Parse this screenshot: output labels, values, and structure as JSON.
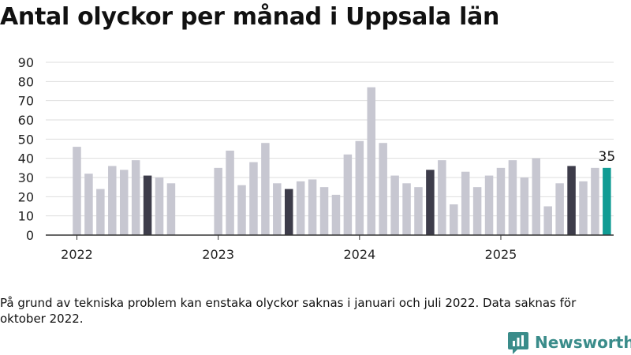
{
  "title": "Antal olyckor per månad i Uppsala län",
  "note": "På grund av tekniska problem kan enstaka olyckor saknas i januari och juli 2022. Data saknas för oktober 2022.",
  "brand": {
    "name": "Newsworthy",
    "icon": "bar-chart-icon"
  },
  "colors": {
    "default": "#c7c7d1",
    "july": "#3d3c4a",
    "latest": "#109c94",
    "grid": "#dddddd",
    "axis": "#333333"
  },
  "chart_data": {
    "type": "bar",
    "title": "Antal olyckor per månad i Uppsala län",
    "xlabel": "",
    "ylabel": "",
    "ylim": [
      0,
      90
    ],
    "yticks": [
      "0",
      "10",
      "20",
      "30",
      "40",
      "50",
      "60",
      "70",
      "80",
      "90"
    ],
    "year_labels": [
      {
        "label": "2022",
        "month_index": 0
      },
      {
        "label": "2023",
        "month_index": 12
      },
      {
        "label": "2024",
        "month_index": 24
      },
      {
        "label": "2025",
        "month_index": 36
      }
    ],
    "highlighted_months": [
      6,
      18,
      30,
      42
    ],
    "latest_label": "35",
    "values": [
      46,
      32,
      24,
      36,
      34,
      39,
      31,
      30,
      27,
      null,
      null,
      null,
      35,
      44,
      26,
      38,
      48,
      27,
      24,
      28,
      29,
      25,
      21,
      42,
      49,
      77,
      48,
      31,
      27,
      25,
      34,
      39,
      16,
      33,
      25,
      31,
      35,
      39,
      30,
      40,
      15,
      27,
      36,
      28,
      35,
      35
    ],
    "grid": true,
    "legend": "none"
  }
}
